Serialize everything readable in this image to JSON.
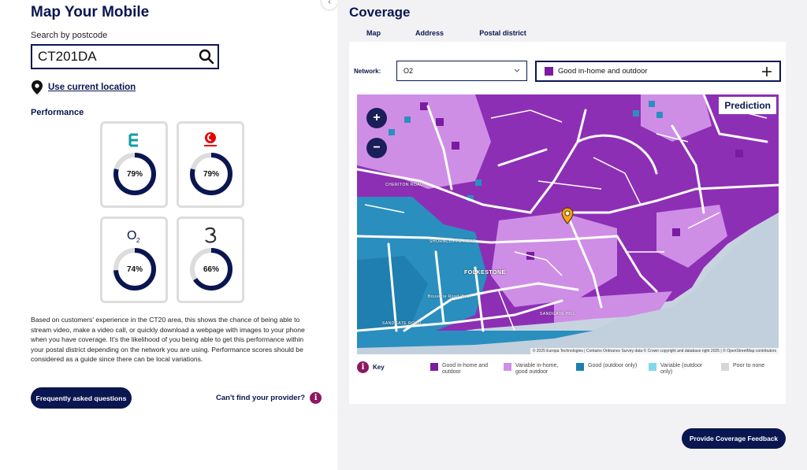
{
  "left": {
    "title": "Map Your Mobile",
    "search": {
      "label": "Search by postcode",
      "value": "CT201DA"
    },
    "location_link": "Use current location",
    "performance_label": "Performance",
    "providers": [
      {
        "name": "EE",
        "percent": "79%",
        "value": 0.79
      },
      {
        "name": "Vodafone",
        "percent": "79%",
        "value": 0.79
      },
      {
        "name": "O2",
        "percent": "74%",
        "value": 0.74
      },
      {
        "name": "Three",
        "percent": "66%",
        "value": 0.66
      }
    ],
    "description": "Based on customers' experience in the CT20 area, this shows the chance of being able to stream video, make a video call, or quickly download a webpage with images to your phone when you have coverage. It's the likelihood of you being able to get this performance within your postal district depending on the network you are using. Performance scores should be considered as a guide since there can be local variations.",
    "faq_button": "Frequently asked questions",
    "cant_find": "Can't find your provider?"
  },
  "right": {
    "title": "Coverage",
    "tabs": [
      "Map",
      "Address",
      "Postal district"
    ],
    "network_label": "Network:",
    "network_value": "O2",
    "layer_value": "Good in-home and outdoor",
    "map": {
      "badge": "Prediction",
      "place_names": [
        "FOLKESTONE",
        "SANDGATE ROAD",
        "SHORNCLIFFE ROAD",
        "CHERITON ROAD",
        "Bouverie Road West",
        "SANDGATE HILL"
      ],
      "attribution": "© 2025 Europa Technologies | Contains Ordnance Survey data © Crown copyright and database right 2025 | © OpenStreetMap contributors"
    },
    "key_label": "Key",
    "legend": [
      {
        "label": "Good in-home and outdoor",
        "color": "#7b1ba1"
      },
      {
        "label": "Variable in-home, good outdoor",
        "color": "#cf8ee6"
      },
      {
        "label": "Good (outdoor only)",
        "color": "#1f7fb0"
      },
      {
        "label": "Variable (outdoor only)",
        "color": "#7fd9ef"
      },
      {
        "label": "Poor to none",
        "color": "#d6d6d6"
      }
    ],
    "feedback_button": "Provide Coverage Feedback"
  }
}
